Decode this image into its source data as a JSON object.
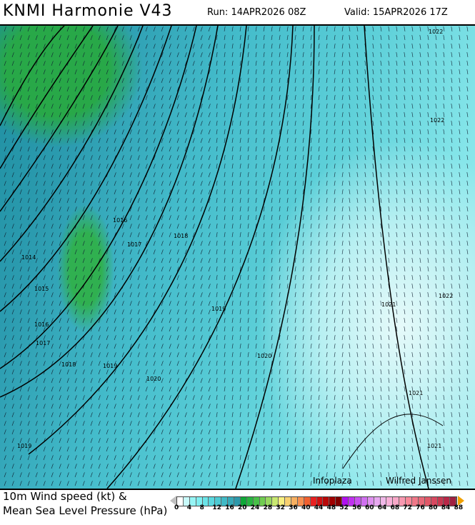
{
  "header": {
    "title": "KNMI Harmonie V43",
    "run": "Run: 14APR2026 08Z",
    "valid": "Valid: 15APR2026 17Z"
  },
  "map": {
    "isobar_labels": [
      "1022",
      "1022",
      "1016",
      "1017",
      "1018",
      "1014",
      "1015",
      "1016",
      "1017",
      "1018",
      "1019",
      "1019",
      "1020",
      "1020",
      "1021",
      "1022",
      "1021",
      "1021",
      "1019"
    ],
    "credits": [
      "Infoplaza",
      "Wilfred Janssen"
    ]
  },
  "legend": {
    "line1": "10m Wind speed (kt) &",
    "line2": "Mean Sea Level Pressure (hPa)",
    "ticks": [
      "0",
      "4",
      "8",
      "12",
      "16",
      "20",
      "24",
      "28",
      "32",
      "36",
      "40",
      "44",
      "48",
      "52",
      "56",
      "60",
      "64",
      "68",
      "72",
      "76",
      "80",
      "84",
      "88"
    ],
    "colors": [
      "#ffffff",
      "#c8fafa",
      "#96f5f5",
      "#80eef0",
      "#6ae4e8",
      "#5ad8df",
      "#4ccad3",
      "#40bac6",
      "#36a9b8",
      "#2c98aa",
      "#10a838",
      "#28b440",
      "#48c048",
      "#70cc50",
      "#98d860",
      "#c8e870",
      "#f8f080",
      "#f8d070",
      "#f8b060",
      "#f89050",
      "#f06030",
      "#e82020",
      "#d01010",
      "#b80808",
      "#a00000",
      "#800000",
      "#b010f0",
      "#c030f0",
      "#c850f0",
      "#d070f0",
      "#e090f0",
      "#e8a8f0",
      "#f0b8e8",
      "#f8b0d8",
      "#f8a8c8",
      "#f898b0",
      "#f88898",
      "#f07888",
      "#e86878",
      "#e05868",
      "#d84860",
      "#c83850",
      "#b82848",
      "#a02040"
    ],
    "under_color": "#c0c0c0",
    "over_color": "#f0a000"
  }
}
